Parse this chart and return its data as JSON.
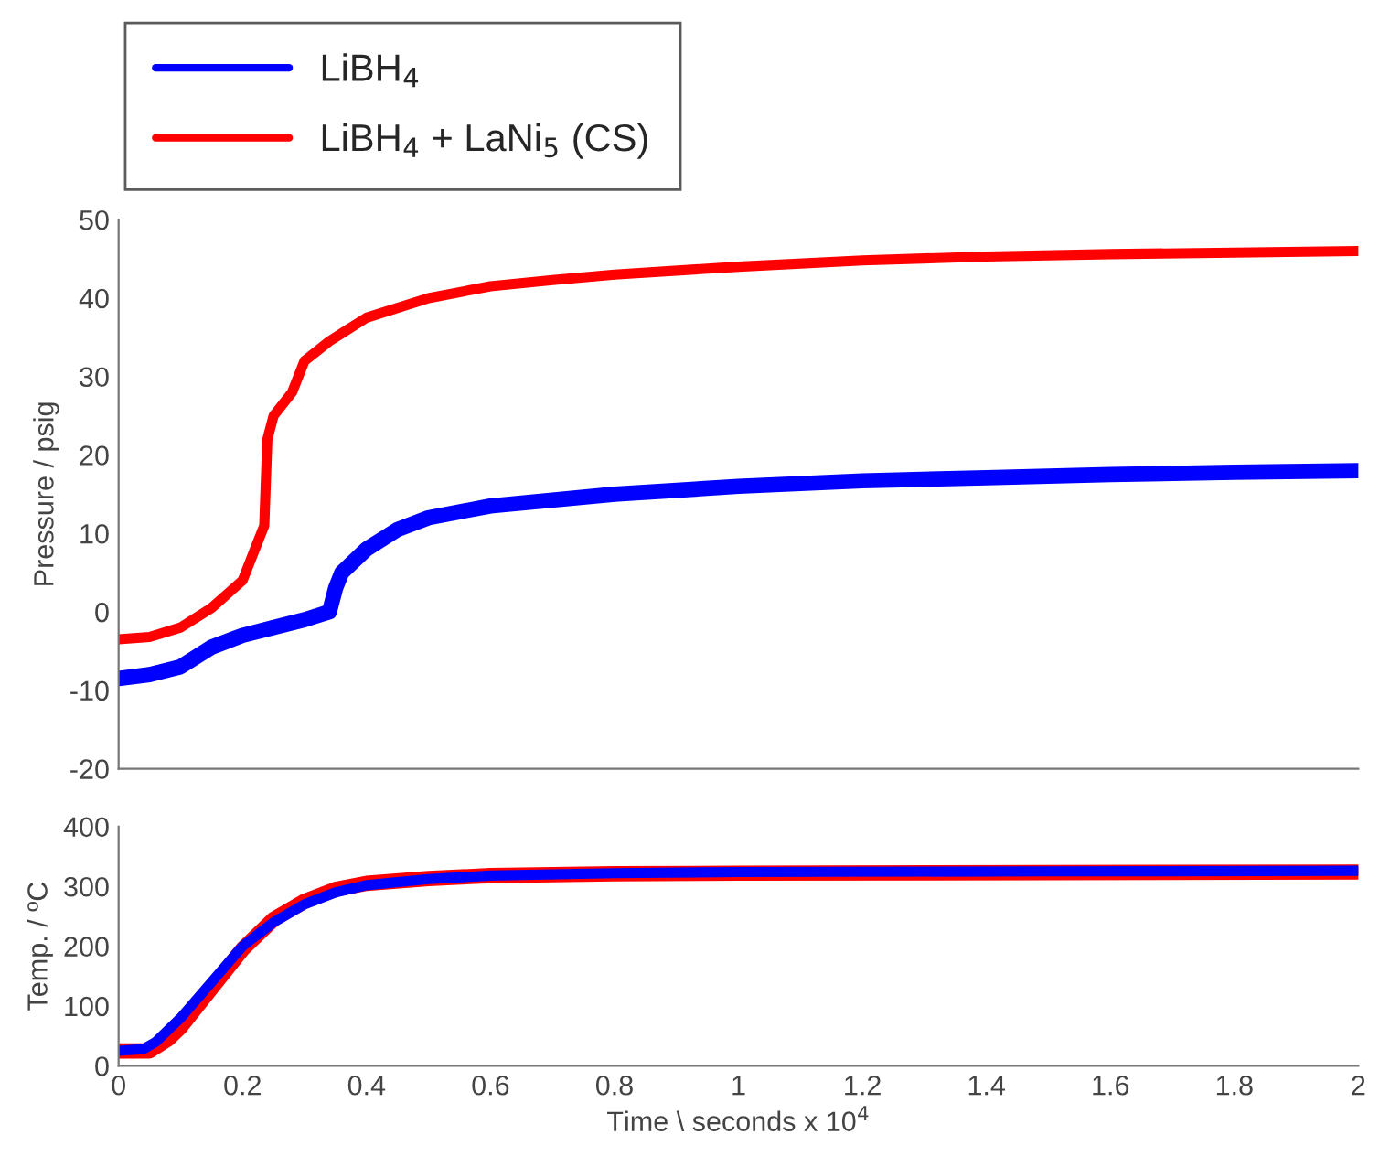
{
  "chart_data": [
    {
      "type": "line",
      "ylabel": "Pressure / psig",
      "xlim": [
        0,
        2
      ],
      "xticks": [
        0,
        0.2,
        0.4,
        0.6,
        0.8,
        1,
        1.2,
        1.4,
        1.6,
        1.8,
        2
      ],
      "ylim": [
        -20,
        50
      ],
      "yticks": [
        -20,
        -10,
        0,
        10,
        20,
        30,
        40,
        50
      ],
      "tick_labels": "y",
      "legend": "top left",
      "grid": false,
      "series": [
        {
          "name": "LiBH$_{4}$",
          "color": "#0000ff",
          "x": [
            0,
            0.05,
            0.1,
            0.15,
            0.2,
            0.25,
            0.3,
            0.34,
            0.35,
            0.36,
            0.4,
            0.45,
            0.5,
            0.6,
            0.8,
            1.0,
            1.2,
            1.4,
            1.6,
            1.8,
            2.0
          ],
          "values": [
            -8.5,
            -8,
            -7,
            -4.5,
            -3,
            -2,
            -1,
            0,
            3,
            5,
            8,
            10.5,
            12,
            13.5,
            15,
            16,
            16.7,
            17.1,
            17.5,
            17.8,
            18
          ]
        },
        {
          "name": "LiBH$_{4}$ + LaNi$_{5}$ (CS)",
          "color": "#ff0000",
          "x": [
            0,
            0.05,
            0.1,
            0.15,
            0.2,
            0.22,
            0.235,
            0.24,
            0.25,
            0.28,
            0.3,
            0.34,
            0.36,
            0.4,
            0.5,
            0.6,
            0.7,
            0.8,
            1.0,
            1.2,
            1.4,
            1.6,
            1.8,
            2.0
          ],
          "values": [
            -3.5,
            -3.2,
            -2,
            0.5,
            4,
            8,
            11,
            22,
            25,
            28,
            32,
            34.5,
            35.5,
            37.5,
            40,
            41.5,
            42.3,
            43,
            44,
            44.8,
            45.3,
            45.6,
            45.8,
            46
          ]
        }
      ]
    },
    {
      "type": "line",
      "xlabel": "Time \\ seconds x 10$^{4}$",
      "ylabel": "Temp. / ºC",
      "xlim": [
        0,
        2
      ],
      "xticks": [
        0,
        0.2,
        0.4,
        0.6,
        0.8,
        1,
        1.2,
        1.4,
        1.6,
        1.8,
        2
      ],
      "ylim": [
        0,
        400
      ],
      "yticks": [
        0,
        100,
        200,
        300,
        400
      ],
      "grid": false,
      "series": [
        {
          "color": "#ff0000",
          "x": [
            0,
            0.05,
            0.08,
            0.1,
            0.15,
            0.2,
            0.25,
            0.3,
            0.35,
            0.4,
            0.5,
            0.6,
            0.8,
            1.0,
            1.5,
            2.0
          ],
          "values": [
            25,
            25,
            45,
            65,
            130,
            195,
            245,
            275,
            295,
            305,
            313,
            318,
            321,
            322,
            323,
            324
          ]
        },
        {
          "color": "#0000ff",
          "x": [
            0,
            0.04,
            0.06,
            0.1,
            0.15,
            0.2,
            0.25,
            0.3,
            0.35,
            0.4,
            0.5,
            0.6,
            0.8,
            1.0,
            1.5,
            2.0
          ],
          "values": [
            25,
            28,
            40,
            80,
            140,
            200,
            240,
            270,
            290,
            302,
            312,
            318,
            322,
            324,
            325,
            326
          ]
        }
      ]
    }
  ]
}
